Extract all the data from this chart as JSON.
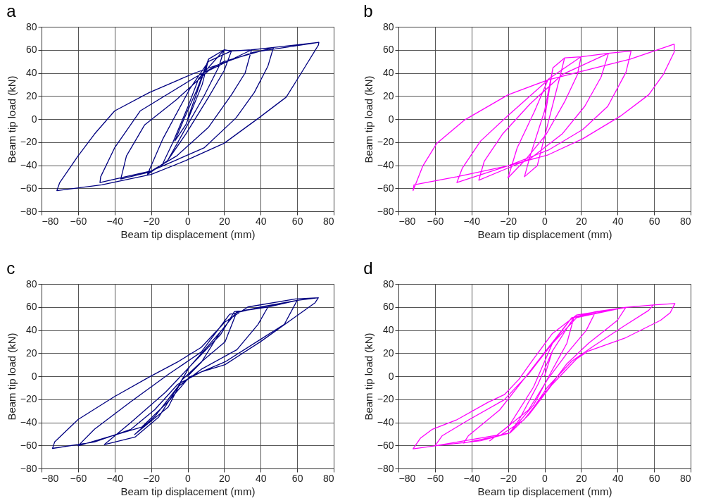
{
  "chart_data": [
    {
      "type": "line",
      "title": "a",
      "xlabel": "Beam tip displacement (mm)",
      "ylabel": "Beam tip load (kN)",
      "xlim": [
        -80,
        80
      ],
      "xticks": [
        -80,
        -60,
        -40,
        -20,
        0,
        20,
        40,
        60,
        80
      ],
      "ylim": [
        -80,
        80
      ],
      "yticks": [
        -80,
        -60,
        -40,
        -20,
        0,
        20,
        40,
        60,
        80
      ],
      "grid": true,
      "series": [
        {
          "color": "#000080",
          "x": [
            0,
            11.5,
            8,
            -1,
            -7,
            -2,
            5,
            11.5,
            20,
            17,
            9,
            0,
            -11,
            -14,
            -8,
            0,
            6,
            20,
            24,
            20,
            11.5,
            -1,
            -11,
            -22,
            -13.5,
            1.5,
            11.5,
            24,
            35,
            31.5,
            24,
            11.5,
            -6,
            -21,
            -36.6,
            -33.5,
            -23.5,
            -6,
            11.5,
            35,
            47,
            44,
            36.5,
            26.5,
            9,
            -20,
            -48,
            -47.6,
            -40,
            -26,
            4,
            20,
            47,
            71.9,
            71.6,
            61.5,
            54,
            39,
            20,
            -1,
            -20,
            -47,
            -71.6,
            -70,
            -60,
            -51,
            -40,
            -21,
            4,
            36,
            71.9
          ],
          "values": [
            0,
            52,
            30,
            -5,
            -19,
            0,
            25,
            52,
            60,
            45,
            20,
            -5,
            -36,
            -40,
            -20,
            10,
            35,
            60,
            59,
            42,
            19,
            -13,
            -36,
            -48,
            -17,
            27,
            50,
            59,
            60,
            40,
            21,
            -7,
            -32,
            -46,
            -52,
            -32,
            -5,
            17,
            42,
            60,
            62,
            46,
            23,
            1,
            -25,
            -45,
            -55,
            -50,
            -25,
            7,
            36,
            50,
            62,
            66.5,
            64,
            38,
            19,
            1,
            -21,
            -36,
            -48,
            -57,
            -62,
            -55,
            -32,
            -13,
            7,
            23,
            40,
            58,
            66.5
          ]
        }
      ]
    },
    {
      "type": "line",
      "title": "b",
      "xlabel": "Beam tip displacement (mm)",
      "ylabel": "Beam tip load (kN)",
      "xlim": [
        -80,
        80
      ],
      "xticks": [
        -80,
        -60,
        -40,
        -20,
        0,
        20,
        40,
        60,
        80
      ],
      "ylim": [
        -80,
        80
      ],
      "yticks": [
        -80,
        -60,
        -40,
        -20,
        0,
        20,
        40,
        60,
        80
      ],
      "grid": true,
      "series": [
        {
          "color": "#ff00ff",
          "x": [
            0,
            4.6,
            11,
            8.4,
            2,
            -4,
            -11,
            -8,
            0,
            4.6,
            11,
            20,
            18,
            11,
            1,
            -10,
            -20,
            -15,
            -5.4,
            2,
            20,
            35,
            31,
            22,
            9.6,
            -8,
            -36,
            -33,
            -23,
            -8,
            9.6,
            35,
            47.4,
            44.6,
            34.6,
            21,
            2,
            -20,
            -48,
            -45,
            -35,
            -20,
            2,
            27,
            47,
            71,
            71,
            65,
            57,
            42,
            21,
            2,
            -20,
            -48,
            -71.5,
            -72,
            -66.6,
            -59,
            -44,
            -20,
            2,
            27,
            47,
            71
          ],
          "values": [
            0,
            44.5,
            53,
            36.5,
            -3,
            -40.5,
            -50,
            -32.6,
            7,
            44.5,
            53,
            54,
            38.5,
            15,
            -13,
            -34.5,
            -51,
            -25,
            7,
            34.5,
            54,
            57,
            36.5,
            11,
            -13,
            -34.5,
            -53,
            -36.5,
            -13,
            13,
            38.5,
            57,
            59,
            40.5,
            11,
            -9,
            -27,
            -40.5,
            -55,
            -42.5,
            -19,
            3,
            34,
            44,
            52,
            65,
            58,
            38.5,
            21,
            3,
            -17,
            -31,
            -40.5,
            -50,
            -57,
            -62,
            -40.5,
            -21,
            -1,
            21,
            34,
            44,
            52,
            65
          ]
        }
      ]
    },
    {
      "type": "line",
      "title": "c",
      "xlabel": "Beam tip displacement (mm)",
      "ylabel": "Beam tip load (kN)",
      "xlim": [
        -80,
        80
      ],
      "xticks": [
        -80,
        -60,
        -40,
        -20,
        0,
        20,
        40,
        60,
        80
      ],
      "ylim": [
        -80,
        80
      ],
      "yticks": [
        -80,
        -60,
        -40,
        -20,
        0,
        20,
        40,
        60,
        80
      ],
      "grid": true,
      "series": [
        {
          "color": "#000080",
          "x": [
            0,
            7.5,
            18,
            27,
            20.5,
            7.5,
            -3,
            -10.6,
            -29,
            -18,
            -5.4,
            1,
            18,
            27,
            44,
            38.6,
            27,
            7.5,
            -5.4,
            -15.8,
            -28.8,
            -45.6,
            -31,
            -12,
            1,
            18,
            25.6,
            44,
            60,
            53,
            40,
            20.5,
            1,
            -10.6,
            -25,
            -60,
            -51,
            -31,
            -10.6,
            7.5,
            23,
            40,
            60,
            71.6,
            69.7,
            59,
            40,
            20.5,
            7.5,
            -5.4,
            -18,
            -31,
            -51,
            -74,
            -72.8,
            -60,
            -40.4,
            -21,
            -5.4,
            7.5,
            20.5,
            33,
            59,
            71.6
          ],
          "values": [
            0,
            12,
            38.5,
            56,
            29.8,
            12.4,
            -3,
            -26.7,
            -50.6,
            -35,
            -9.3,
            8,
            38.5,
            56,
            60,
            45,
            23,
            6,
            -9.3,
            -35.4,
            -52.8,
            -59.3,
            -40,
            -13.7,
            8,
            36,
            56,
            60,
            65.7,
            45,
            32,
            12.4,
            -0.7,
            -22,
            -44,
            -60.4,
            -46,
            -22,
            1.5,
            21,
            53.7,
            60,
            65.7,
            68,
            63.5,
            51.5,
            30,
            10,
            3.7,
            -7,
            -29,
            -46,
            -57,
            -62.6,
            -57,
            -37.6,
            -18,
            -0.7,
            12.4,
            25,
            47,
            60,
            67,
            68
          ]
        }
      ]
    },
    {
      "type": "line",
      "title": "d",
      "xlabel": "Beam tip displacement (mm)",
      "ylabel": "Beam tip load (kN)",
      "xlim": [
        -80,
        80
      ],
      "xticks": [
        -80,
        -60,
        -40,
        -20,
        0,
        20,
        40,
        60,
        80
      ],
      "ylim": [
        -80,
        80
      ],
      "yticks": [
        -80,
        -60,
        -40,
        -20,
        0,
        20,
        40,
        60,
        80
      ],
      "grid": true,
      "series": [
        {
          "color": "#ff00ff",
          "x": [
            0,
            4.3,
            16,
            12.2,
            3,
            -6,
            -19,
            -14,
            -3.6,
            4.3,
            16,
            28,
            22.8,
            12.2,
            1.7,
            -8.8,
            -30,
            -19.3,
            -6,
            4.3,
            14.9,
            28,
            44.5,
            39.9,
            24,
            12.2,
            1.7,
            -11.4,
            -24.6,
            -44.3,
            -41.7,
            -24.6,
            -11.4,
            1.7,
            14.9,
            44.5,
            59.6,
            57,
            44,
            26.7,
            14.9,
            1.7,
            -8.8,
            -19,
            -60,
            -56,
            -41.7,
            -22,
            -8.8,
            4.3,
            17.5,
            44,
            59.6,
            71.4,
            68.8,
            63.5,
            44,
            24,
            17.5,
            4.3,
            -8.8,
            -19,
            -35,
            -60,
            -72,
            -68,
            -61.4,
            -48.3,
            -31,
            -22,
            -14,
            -6,
            4.3,
            17.5,
            44,
            59.6,
            71.4
          ],
          "values": [
            0,
            21.8,
            50.7,
            28.4,
            1.8,
            -25,
            -49,
            -38,
            -7,
            21.8,
            50.7,
            56,
            39.6,
            19.6,
            -2.7,
            -29.3,
            -56,
            -42.7,
            -9.3,
            28.4,
            50.7,
            56,
            59.6,
            48.4,
            28.4,
            10.7,
            -11.6,
            -38,
            -51.6,
            -58,
            -51.6,
            -29.3,
            -2.7,
            24,
            50.7,
            59.6,
            61.8,
            57,
            44,
            26,
            13,
            -9.3,
            -33.8,
            -49.3,
            -60.4,
            -51.6,
            -38,
            -20.4,
            1.8,
            28.4,
            50.7,
            59.6,
            61.8,
            63,
            55,
            48.4,
            33,
            21.8,
            15,
            -7,
            -33.8,
            -49.3,
            -56,
            -60.4,
            -63,
            -53.8,
            -46,
            -38,
            -22.7,
            -16,
            -2.7,
            15,
            37,
            53,
            59.6,
            61.8,
            63
          ]
        }
      ]
    }
  ]
}
